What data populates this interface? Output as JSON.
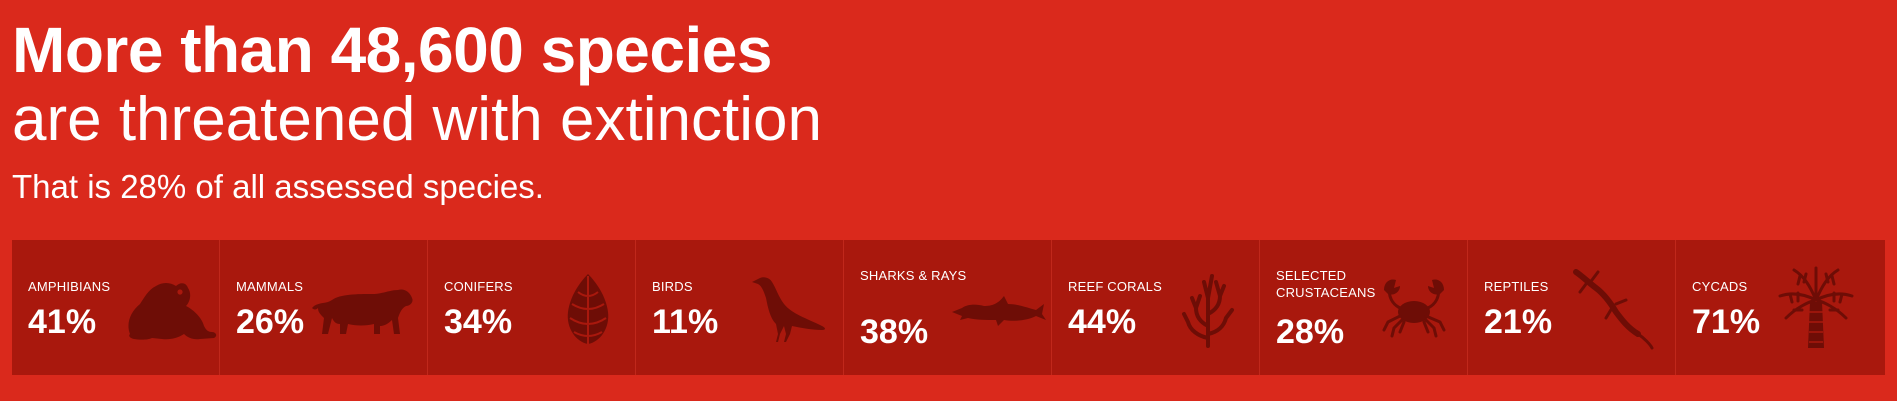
{
  "banner": {
    "headline_bold": "More than 48,600 species",
    "headline_light": "are threatened with extinction",
    "subtitle": "That is 28% of all assessed species."
  },
  "colors": {
    "background": "#da291c",
    "panel": "#a9180d",
    "icon": "#6e0d06",
    "text": "#ffffff"
  },
  "stats": [
    {
      "label": "AMPHIBIANS",
      "value": "41%",
      "icon": "frog-icon"
    },
    {
      "label": "MAMMALS",
      "value": "26%",
      "icon": "tiger-icon"
    },
    {
      "label": "CONIFERS",
      "value": "34%",
      "icon": "pine-cone-icon"
    },
    {
      "label": "BIRDS",
      "value": "11%",
      "icon": "bird-icon"
    },
    {
      "label": "SHARKS & RAYS",
      "value": "38%",
      "icon": "shark-icon"
    },
    {
      "label": "REEF CORALS",
      "value": "44%",
      "icon": "coral-icon"
    },
    {
      "label": "SELECTED CRUSTACEANS",
      "value": "28%",
      "icon": "crab-icon"
    },
    {
      "label": "REPTILES",
      "value": "21%",
      "icon": "lizard-icon"
    },
    {
      "label": "CYCADS",
      "value": "71%",
      "icon": "cycad-icon"
    }
  ]
}
